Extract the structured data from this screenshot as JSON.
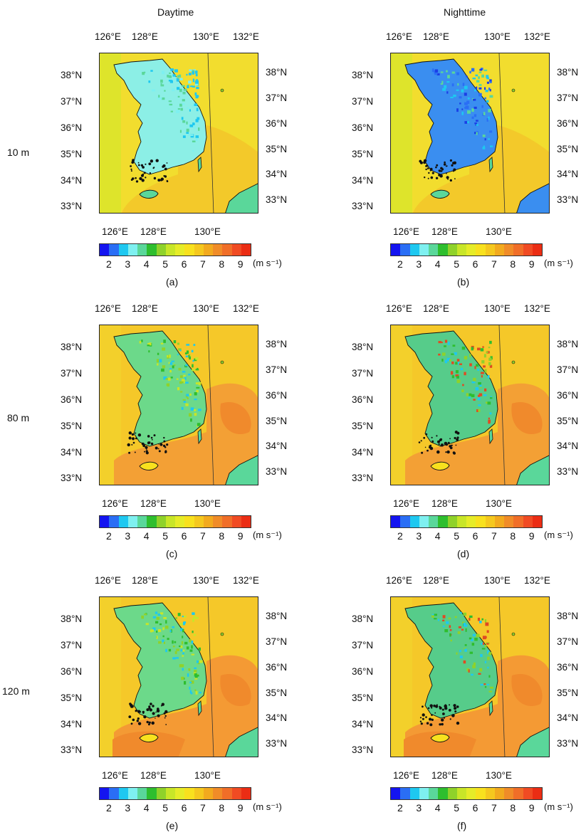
{
  "columns": [
    "Daytime",
    "Nighttime"
  ],
  "rows": [
    "10 m",
    "80 m",
    "120 m"
  ],
  "panels": [
    {
      "label": "(a)",
      "level": 0,
      "night": false
    },
    {
      "label": "(b)",
      "level": 0,
      "night": true
    },
    {
      "label": "(c)",
      "level": 1,
      "night": false
    },
    {
      "label": "(d)",
      "level": 1,
      "night": true
    },
    {
      "label": "(e)",
      "level": 2,
      "night": false
    },
    {
      "label": "(f)",
      "level": 2,
      "night": true
    }
  ],
  "ticks": {
    "top": [
      "126°E",
      "128°E",
      "130°E",
      "132°E"
    ],
    "bottom": [
      "126°E",
      "128°E",
      "130°E"
    ],
    "left": [
      "38°N",
      "37°N",
      "36°N",
      "35°N",
      "34°N",
      "33°N"
    ],
    "right": [
      "38°N",
      "37°N",
      "36°N",
      "35°N",
      "34°N",
      "33°N"
    ]
  },
  "colorbar": {
    "labels": [
      "2",
      "3",
      "4",
      "5",
      "6",
      "7",
      "8",
      "9"
    ],
    "unit": "(m s⁻¹)",
    "colors": [
      "#1414f0",
      "#2a6ef5",
      "#1ec8f0",
      "#7ef0f0",
      "#5ad79a",
      "#2ebe2e",
      "#8fd22a",
      "#c8e628",
      "#e6ec28",
      "#f8e11e",
      "#f5c81e",
      "#f2aa1e",
      "#f08c28",
      "#f06e28",
      "#f04b23",
      "#eb2d14"
    ]
  },
  "colors": {
    "sea_day_low": "#f0da2c",
    "sea_high": "#f5a83c",
    "sea_very_high": "#f08a30",
    "land_day": "#6fd98c",
    "land_cyan": "#8ff0ee",
    "land_night": "#2e6ee8",
    "coast": "#111111"
  }
}
